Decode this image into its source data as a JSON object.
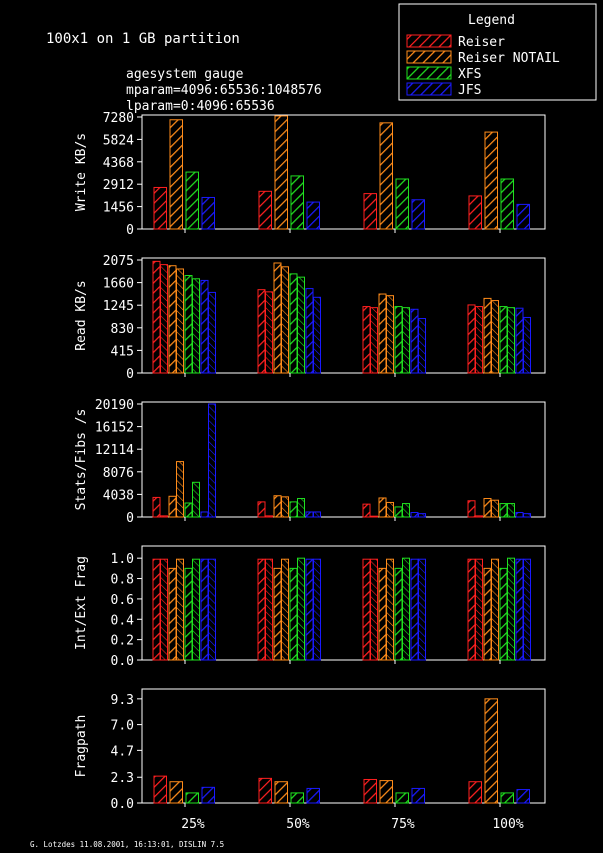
{
  "header": {
    "title": "100x1 on 1 GB partition",
    "subtitle_lines": [
      "agesystem gauge",
      "mparam=4096:65536:1048576",
      "lparam=0:4096:65536"
    ]
  },
  "legend": {
    "title": "Legend",
    "entries": [
      {
        "name": "Reiser",
        "color": "#ff2020"
      },
      {
        "name": "Reiser NOTAIL",
        "color": "#ff8c1a"
      },
      {
        "name": "XFS",
        "color": "#20e020"
      },
      {
        "name": "JFS",
        "color": "#1a1aff"
      }
    ]
  },
  "footer": "G. Lotzdes 11.08.2001, 16:13:01, DISLIN 7.5",
  "chart_data": {
    "type": "bar",
    "categories": [
      "25%",
      "50%",
      "75%",
      "100%"
    ],
    "panels": [
      {
        "ylabel": "Write KB/s",
        "ylim": [
          0,
          7280
        ],
        "yticks": [
          "0",
          "1456",
          "2912",
          "4368",
          "5824",
          "7280"
        ],
        "series": [
          {
            "name": "Reiser",
            "values": [
              [
                2700
              ],
              [
                2450
              ],
              [
                2300
              ],
              [
                2150
              ]
            ]
          },
          {
            "name": "Reiser NOTAIL",
            "values": [
              [
                7100
              ],
              [
                7350
              ],
              [
                6900
              ],
              [
                6300
              ]
            ]
          },
          {
            "name": "XFS",
            "values": [
              [
                3700
              ],
              [
                3450
              ],
              [
                3250
              ],
              [
                3250
              ]
            ]
          },
          {
            "name": "JFS",
            "values": [
              [
                2050
              ],
              [
                1750
              ],
              [
                1900
              ],
              [
                1600
              ]
            ]
          }
        ]
      },
      {
        "ylabel": "Read KB/s",
        "ylim": [
          0,
          2075
        ],
        "yticks": [
          "0",
          "415",
          "830",
          "1245",
          "1660",
          "2075"
        ],
        "series": [
          {
            "name": "Reiser",
            "values": [
              [
                2050,
                1990
              ],
              [
                1530,
                1490
              ],
              [
                1220,
                1200
              ],
              [
                1250,
                1220
              ]
            ]
          },
          {
            "name": "Reiser NOTAIL",
            "values": [
              [
                1970,
                1910
              ],
              [
                2020,
                1950
              ],
              [
                1450,
                1420
              ],
              [
                1370,
                1330
              ]
            ]
          },
          {
            "name": "XFS",
            "values": [
              [
                1790,
                1730
              ],
              [
                1820,
                1760
              ],
              [
                1220,
                1200
              ],
              [
                1220,
                1200
              ]
            ]
          },
          {
            "name": "JFS",
            "values": [
              [
                1700,
                1480
              ],
              [
                1550,
                1390
              ],
              [
                1170,
                1000
              ],
              [
                1190,
                1020
              ]
            ]
          }
        ]
      },
      {
        "ylabel": "Stats/Fibs /s",
        "ylim": [
          0,
          20190
        ],
        "yticks": [
          "0",
          "4038",
          "8076",
          "12114",
          "16152",
          "20190"
        ],
        "series": [
          {
            "name": "Reiser",
            "values": [
              [
                3500,
                200
              ],
              [
                2700,
                200
              ],
              [
                2300,
                150
              ],
              [
                2900,
                200
              ]
            ]
          },
          {
            "name": "Reiser NOTAIL",
            "values": [
              [
                3700,
                9900
              ],
              [
                3800,
                3600
              ],
              [
                3400,
                2600
              ],
              [
                3300,
                3000
              ]
            ]
          },
          {
            "name": "XFS",
            "values": [
              [
                2500,
                6200
              ],
              [
                2700,
                3300
              ],
              [
                1800,
                2400
              ],
              [
                2400,
                2400
              ]
            ]
          },
          {
            "name": "JFS",
            "values": [
              [
                900,
                20190
              ],
              [
                900,
                900
              ],
              [
                800,
                600
              ],
              [
                800,
                600
              ]
            ]
          }
        ]
      },
      {
        "ylabel": "Int/Ext Frag",
        "ylim": [
          0,
          1.1
        ],
        "yticks": [
          "0.0",
          "0.2",
          "0.4",
          "0.6",
          "0.8",
          "1.0"
        ],
        "series": [
          {
            "name": "Reiser",
            "values": [
              [
                0.99,
                0.99
              ],
              [
                0.99,
                0.99
              ],
              [
                0.99,
                0.99
              ],
              [
                0.99,
                0.99
              ]
            ]
          },
          {
            "name": "Reiser NOTAIL",
            "values": [
              [
                0.9,
                0.99
              ],
              [
                0.9,
                0.99
              ],
              [
                0.9,
                0.99
              ],
              [
                0.9,
                0.99
              ]
            ]
          },
          {
            "name": "XFS",
            "values": [
              [
                0.9,
                0.99
              ],
              [
                0.9,
                1.0
              ],
              [
                0.9,
                1.0
              ],
              [
                0.9,
                1.0
              ]
            ]
          },
          {
            "name": "JFS",
            "values": [
              [
                0.99,
                0.99
              ],
              [
                0.99,
                0.99
              ],
              [
                0.99,
                0.99
              ],
              [
                0.99,
                0.99
              ]
            ]
          }
        ]
      },
      {
        "ylabel": "Fragpath",
        "ylim": [
          0,
          10
        ],
        "yticks": [
          "0.0",
          "2.3",
          "4.7",
          "7.0",
          "9.3"
        ],
        "series": [
          {
            "name": "Reiser",
            "values": [
              [
                2.4
              ],
              [
                2.2
              ],
              [
                2.1
              ],
              [
                1.9
              ]
            ]
          },
          {
            "name": "Reiser NOTAIL",
            "values": [
              [
                1.9
              ],
              [
                1.9
              ],
              [
                2.0
              ],
              [
                9.3
              ]
            ]
          },
          {
            "name": "XFS",
            "values": [
              [
                0.9
              ],
              [
                0.9
              ],
              [
                0.9
              ],
              [
                0.9
              ]
            ]
          },
          {
            "name": "JFS",
            "values": [
              [
                1.4
              ],
              [
                1.3
              ],
              [
                1.3
              ],
              [
                1.2
              ]
            ]
          }
        ]
      }
    ]
  }
}
